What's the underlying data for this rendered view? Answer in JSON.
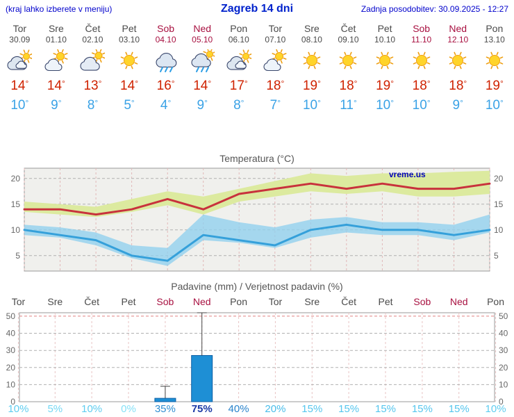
{
  "header": {
    "left_note": "(kraj lahko izberete v meniju)",
    "title": "Zagreb 14 dni",
    "last_update": "Zadnja posodobitev: 30.09.2025 - 12:27"
  },
  "days": [
    {
      "name": "Tor",
      "date": "30.09",
      "weekend": false,
      "icon": "cloudy",
      "tmax": "14°",
      "tmin": "10°"
    },
    {
      "name": "Sre",
      "date": "01.10",
      "weekend": false,
      "icon": "partly",
      "tmax": "14°",
      "tmin": "9°"
    },
    {
      "name": "Čet",
      "date": "02.10",
      "weekend": false,
      "icon": "mostly-cloudy",
      "tmax": "13°",
      "tmin": "8°"
    },
    {
      "name": "Pet",
      "date": "03.10",
      "weekend": false,
      "icon": "sunny",
      "tmax": "14°",
      "tmin": "5°"
    },
    {
      "name": "Sob",
      "date": "04.10",
      "weekend": true,
      "icon": "rain",
      "tmax": "16°",
      "tmin": "4°"
    },
    {
      "name": "Ned",
      "date": "05.10",
      "weekend": true,
      "icon": "showers",
      "tmax": "14°",
      "tmin": "9°"
    },
    {
      "name": "Pon",
      "date": "06.10",
      "weekend": false,
      "icon": "cloudy",
      "tmax": "17°",
      "tmin": "8°"
    },
    {
      "name": "Tor",
      "date": "07.10",
      "weekend": false,
      "icon": "partly",
      "tmax": "18°",
      "tmin": "7°"
    },
    {
      "name": "Sre",
      "date": "08.10",
      "weekend": false,
      "icon": "sunny",
      "tmax": "19°",
      "tmin": "10°"
    },
    {
      "name": "Čet",
      "date": "09.10",
      "weekend": false,
      "icon": "sunny",
      "tmax": "18°",
      "tmin": "11°"
    },
    {
      "name": "Pet",
      "date": "10.10",
      "weekend": false,
      "icon": "sunny",
      "tmax": "19°",
      "tmin": "10°"
    },
    {
      "name": "Sob",
      "date": "11.10",
      "weekend": true,
      "icon": "sunny",
      "tmax": "18°",
      "tmin": "10°"
    },
    {
      "name": "Ned",
      "date": "12.10",
      "weekend": true,
      "icon": "sunny",
      "tmax": "18°",
      "tmin": "9°"
    },
    {
      "name": "Pon",
      "date": "13.10",
      "weekend": false,
      "icon": "sunny",
      "tmax": "19°",
      "tmin": "10°"
    }
  ],
  "chart_data": [
    {
      "type": "line",
      "title": "Temperatura (°C)",
      "watermark": "vreme.us",
      "categories": [
        "Tor 30.09",
        "Sre 01.10",
        "Čet 02.10",
        "Pet 03.10",
        "Sob 04.10",
        "Ned 05.10",
        "Pon 06.10",
        "Tor 07.10",
        "Sre 08.10",
        "Čet 09.10",
        "Pet 10.10",
        "Sob 11.10",
        "Ned 12.10",
        "Pon 13.10"
      ],
      "series": [
        {
          "name": "max-temperature",
          "color": "#c8323c",
          "values": [
            14,
            14,
            13,
            14,
            16,
            14,
            17,
            18,
            19,
            18,
            19,
            18,
            18,
            19
          ]
        },
        {
          "name": "min-temperature",
          "color": "#35a0da",
          "values": [
            10,
            9,
            8,
            5,
            4,
            9,
            8,
            7,
            10,
            11,
            10,
            10,
            9,
            10
          ]
        }
      ],
      "bands": [
        {
          "name": "max-range",
          "color": "#dcea9f",
          "opacity": 1,
          "upper": [
            15.5,
            15,
            14.5,
            16,
            17.5,
            16.5,
            18,
            19.5,
            21,
            20.5,
            21,
            21,
            21.3,
            21.5
          ],
          "lower": [
            13.5,
            13,
            12.5,
            13.5,
            14.8,
            13,
            15.5,
            16.5,
            17.5,
            17,
            17.5,
            16.5,
            16.5,
            17
          ]
        },
        {
          "name": "min-range",
          "color": "#8fd0ee",
          "opacity": 0.78,
          "upper": [
            11,
            10.5,
            9.5,
            7,
            6.5,
            13,
            11.5,
            10.5,
            12,
            12.5,
            11.5,
            11.5,
            11,
            13
          ],
          "lower": [
            9,
            8.5,
            7,
            4.5,
            3,
            8,
            7.5,
            6.5,
            8.5,
            9.5,
            9,
            9,
            8,
            9.5
          ]
        }
      ],
      "yticks": [
        5,
        10,
        15,
        20
      ],
      "ylim": [
        2,
        22
      ],
      "grid": true,
      "legend_position": "none"
    },
    {
      "type": "bar",
      "title": "Padavine (mm) / Verjetnost padavin (%)",
      "categories": [
        "Tor",
        "Sre",
        "Čet",
        "Pet",
        "Sob",
        "Ned",
        "Pon",
        "Tor",
        "Sre",
        "Čet",
        "Pet",
        "Sob",
        "Ned",
        "Pon"
      ],
      "weekend": [
        false,
        false,
        false,
        false,
        true,
        true,
        false,
        false,
        false,
        false,
        false,
        true,
        true,
        false
      ],
      "values": [
        0,
        0,
        0,
        0,
        2,
        27,
        0,
        0,
        0,
        0,
        0,
        0,
        0,
        0
      ],
      "whisker_max": [
        0,
        0,
        0,
        0,
        9,
        52,
        0,
        0,
        0,
        0,
        0,
        0,
        0,
        0
      ],
      "bar_color": "#1e8fd5",
      "bar_border": "#0c5fa5",
      "probabilities": [
        {
          "value": 10,
          "label": "10%",
          "color": "#5fcdf0"
        },
        {
          "value": 5,
          "label": "5%",
          "color": "#74d8f4"
        },
        {
          "value": 10,
          "label": "10%",
          "color": "#5fcdf0"
        },
        {
          "value": 0,
          "label": "0%",
          "color": "#86e1f7"
        },
        {
          "value": 35,
          "label": "35%",
          "color": "#2e8ed2"
        },
        {
          "value": 75,
          "label": "75%",
          "color": "#1b3aa6"
        },
        {
          "value": 40,
          "label": "40%",
          "color": "#2a84cc"
        },
        {
          "value": 20,
          "label": "20%",
          "color": "#49bdea"
        },
        {
          "value": 15,
          "label": "15%",
          "color": "#55c6ee"
        },
        {
          "value": 15,
          "label": "15%",
          "color": "#55c6ee"
        },
        {
          "value": 15,
          "label": "15%",
          "color": "#55c6ee"
        },
        {
          "value": 15,
          "label": "15%",
          "color": "#55c6ee"
        },
        {
          "value": 15,
          "label": "15%",
          "color": "#55c6ee"
        },
        {
          "value": 10,
          "label": "10%",
          "color": "#5fcdf0"
        }
      ],
      "yticks": [
        0,
        10,
        20,
        30,
        40,
        50
      ],
      "ylim": [
        0,
        52
      ],
      "grid": true,
      "legend_position": "none"
    }
  ]
}
